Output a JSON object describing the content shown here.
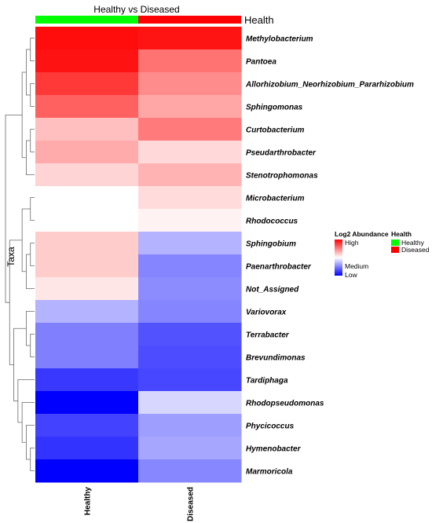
{
  "chart_data": {
    "type": "heatmap",
    "title": "Healthy vs Diseased",
    "ylabel": "Taxa",
    "columns": [
      "Healthy",
      "Diseased"
    ],
    "rows": [
      "Methylobacterium",
      "Pantoea",
      "Allorhizobium_Neorhizobium_Pararhizobium",
      "Sphingomonas",
      "Curtobacterium",
      "Pseudarthrobacter",
      "Stenotrophomonas",
      "Microbacterium",
      "Rhodococcus",
      "Sphingobium",
      "Paenarthrobacter",
      "Not_Assigned",
      "Variovorax",
      "Terrabacter",
      "Brevundimonas",
      "Tardiphaga",
      "Rhodopseudomonas",
      "Phycicoccus",
      "Hymenobacter",
      "Marmoricola"
    ],
    "values": [
      [
        0.95,
        0.92
      ],
      [
        0.93,
        0.55
      ],
      [
        0.78,
        0.45
      ],
      [
        0.62,
        0.35
      ],
      [
        0.25,
        0.52
      ],
      [
        0.33,
        0.15
      ],
      [
        0.17,
        0.3
      ],
      [
        0.0,
        0.14
      ],
      [
        0.0,
        0.05
      ],
      [
        0.2,
        -0.3
      ],
      [
        0.2,
        -0.48
      ],
      [
        0.1,
        -0.45
      ],
      [
        -0.3,
        -0.48
      ],
      [
        -0.5,
        -0.68
      ],
      [
        -0.5,
        -0.7
      ],
      [
        -0.78,
        -0.72
      ],
      [
        -1.0,
        -0.16
      ],
      [
        -0.74,
        -0.38
      ],
      [
        -0.8,
        -0.35
      ],
      [
        -1.0,
        -0.47
      ]
    ],
    "value_scale": "relative log2 abundance, -1 = Low, 0 = Medium, 1 = High",
    "color_scale": {
      "title": "Log2 Abundance",
      "high_label": "High",
      "medium_label": "Medium",
      "low_label": "Low",
      "high_color": "#ff0000",
      "mid_color": "#ffffff",
      "low_color": "#0000ff"
    },
    "annotation": {
      "label": "Health",
      "legend_title": "Health",
      "groups": [
        {
          "name": "Healthy",
          "color": "#00ff00"
        },
        {
          "name": "Diseased",
          "color": "#ff0000"
        }
      ]
    },
    "row_dendrogram": true,
    "grid": false,
    "legend_position": "right"
  }
}
